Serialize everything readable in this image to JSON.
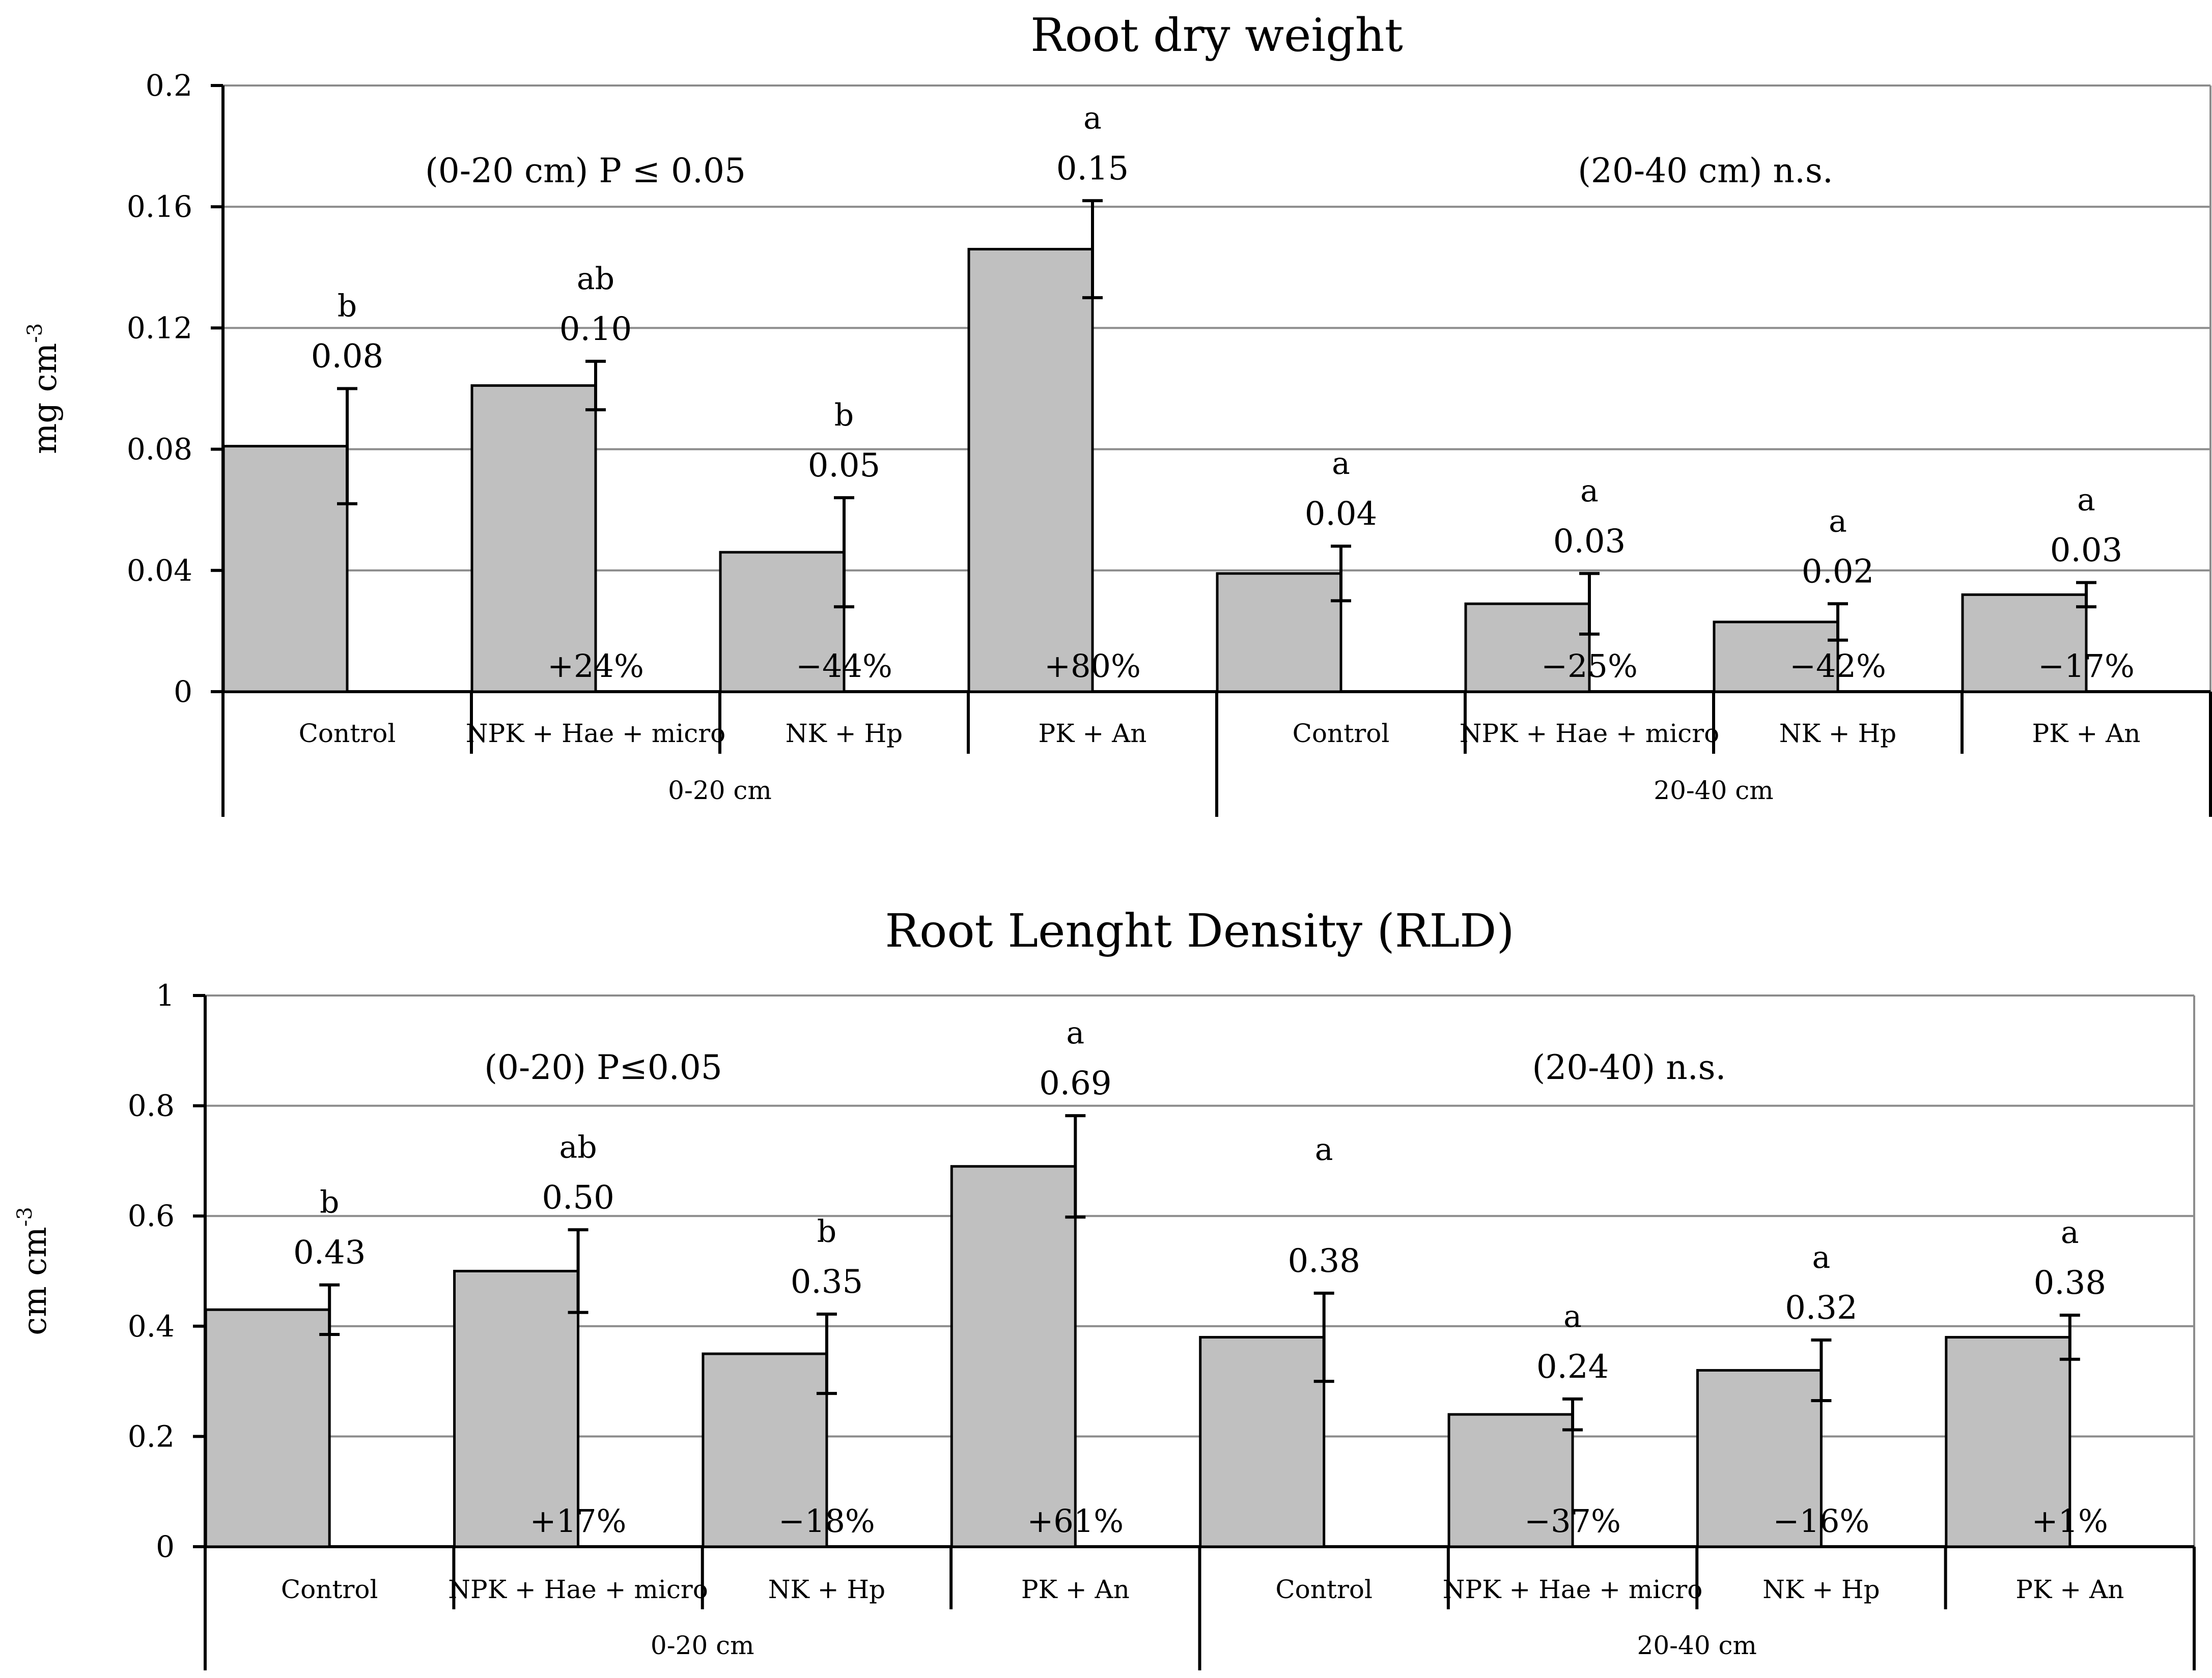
{
  "chart_data": [
    {
      "type": "bar",
      "title": "Root dry weight",
      "ylabel": "mg cm",
      "ylabel_sup": "-3",
      "ylim": [
        0,
        0.2
      ],
      "yticks": [
        "0",
        "0.04",
        "0.08",
        "0.12",
        "0.16",
        "0.2"
      ],
      "ytick_values": [
        0,
        0.04,
        0.08,
        0.12,
        0.16,
        0.2
      ],
      "grid": true,
      "groups": [
        {
          "label": "0-20 cm",
          "annotation": "(0-20 cm) P ≤ 0.05"
        },
        {
          "label": "20-40 cm",
          "annotation": "(20-40 cm) n.s."
        }
      ],
      "categories": [
        "Control",
        "NPK + Hae + micro",
        "NK + Hp",
        "PK + An",
        "Control",
        "NPK + Hae + micro",
        "NK + Hp",
        "PK + An"
      ],
      "values": [
        0.081,
        0.101,
        0.046,
        0.146,
        0.039,
        0.029,
        0.023,
        0.032
      ],
      "errors": [
        0.019,
        0.008,
        0.018,
        0.016,
        0.009,
        0.01,
        0.006,
        0.004
      ],
      "value_labels": [
        "0.08",
        "0.10",
        "0.05",
        "0.15",
        "0.04",
        "0.03",
        "0.02",
        "0.03"
      ],
      "letters": [
        "b",
        "ab",
        "b",
        "a",
        "a",
        "a",
        "a",
        "a"
      ],
      "percent_labels": [
        "",
        "+24%",
        "−44%",
        "+80%",
        "",
        "−25%",
        "−42%",
        "−17%"
      ],
      "bar_color": "#c0c0c0"
    },
    {
      "type": "bar",
      "title": "Root Lenght Density (RLD)",
      "ylabel": "cm cm",
      "ylabel_sup": "-3",
      "ylim": [
        0,
        1
      ],
      "yticks": [
        "0",
        "0.2",
        "0.4",
        "0.6",
        "0.8",
        "1"
      ],
      "ytick_values": [
        0,
        0.2,
        0.4,
        0.6,
        0.8,
        1
      ],
      "grid": true,
      "groups": [
        {
          "label": "0-20 cm",
          "annotation": "(0-20) P≤0.05"
        },
        {
          "label": "20-40 cm",
          "annotation": "(20-40) n.s."
        }
      ],
      "categories": [
        "Control",
        "NPK + Hae + micro",
        "NK + Hp",
        "PK + An",
        "Control",
        "NPK + Hae + micro",
        "NK + Hp",
        "PK + An"
      ],
      "values": [
        0.43,
        0.5,
        0.35,
        0.69,
        0.38,
        0.24,
        0.32,
        0.38
      ],
      "errors": [
        0.045,
        0.075,
        0.072,
        0.092,
        0.08,
        0.028,
        0.055,
        0.04
      ],
      "value_labels": [
        "0.43",
        "0.50",
        "0.35",
        "0.69",
        "0.38",
        "0.24",
        "0.32",
        "0.38"
      ],
      "letters": [
        "b",
        "ab",
        "b",
        "a",
        "a",
        "a",
        "a",
        "a"
      ],
      "percent_labels": [
        "",
        "+17%",
        "−18%",
        "+61%",
        "",
        "−37%",
        "−16%",
        "+1%"
      ],
      "bar_color": "#c0c0c0"
    }
  ]
}
